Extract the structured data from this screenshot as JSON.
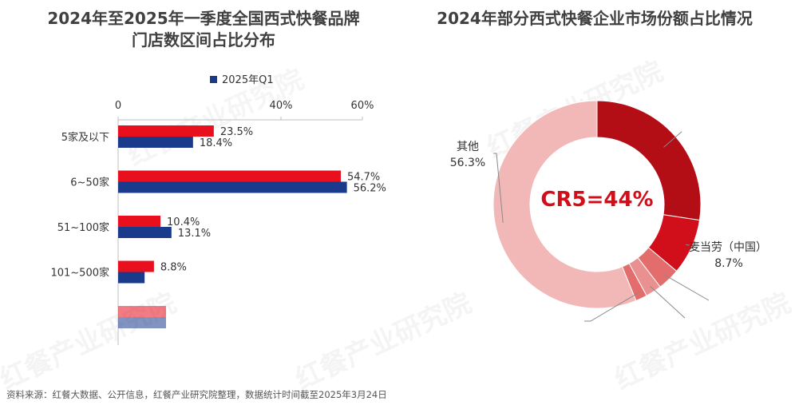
{
  "left_title_line1": "2024年至2025年一季度全国西式快餐品牌",
  "left_title_line2": "门店数区间占比分布",
  "right_title": "2024年部分西式快餐企业市场份额占比情况",
  "footer": "资料来源：红餐大数据、公开信息，红餐产业研究院整理，数据统计时间截至2025年3月24日",
  "watermark": "红餐产业研究院",
  "colors": {
    "series_2024": "#e8101d",
    "series_2025": "#1a3a8c",
    "donut_dark": "#b30d16",
    "donut_red": "#d10f1a",
    "donut_pink1": "#e36c6c",
    "donut_pink2": "#e99090",
    "donut_other": "#f2b8b8",
    "cr5_text": "#d10f1a"
  },
  "chart_data": [
    {
      "type": "bar",
      "orientation": "horizontal",
      "categories": [
        "5家及以下",
        "6~50家",
        "51~100家",
        "101~500家",
        ""
      ],
      "series": [
        {
          "name": "",
          "values": [
            23.5,
            54.7,
            10.4,
            8.8,
            null
          ],
          "labels": [
            "23.5%",
            "54.7%",
            "10.4%",
            "8.8%",
            ""
          ]
        },
        {
          "name": "2025年Q1",
          "values": [
            18.4,
            56.2,
            13.1,
            6.5,
            null
          ],
          "labels": [
            "18.4%",
            "56.2%",
            "13.1%",
            "",
            ""
          ]
        }
      ],
      "xticks": [
        "0",
        "40%",
        "60%"
      ],
      "xlim": [
        0,
        60
      ],
      "legend": "top",
      "grid": false
    },
    {
      "type": "pie",
      "variant": "donut",
      "center_label": "CR5=44%",
      "slices": [
        {
          "name": "",
          "value": 27.5,
          "label": ""
        },
        {
          "name": "麦当劳（中国）",
          "value": 8.7,
          "label": "8.7%"
        },
        {
          "name": "",
          "value": 3.5,
          "label": ""
        },
        {
          "name": "",
          "value": 2.5,
          "label": ""
        },
        {
          "name": "",
          "value": 1.8,
          "label": ""
        },
        {
          "name": "其他",
          "value": 56.3,
          "label": "56.3%"
        }
      ]
    }
  ]
}
